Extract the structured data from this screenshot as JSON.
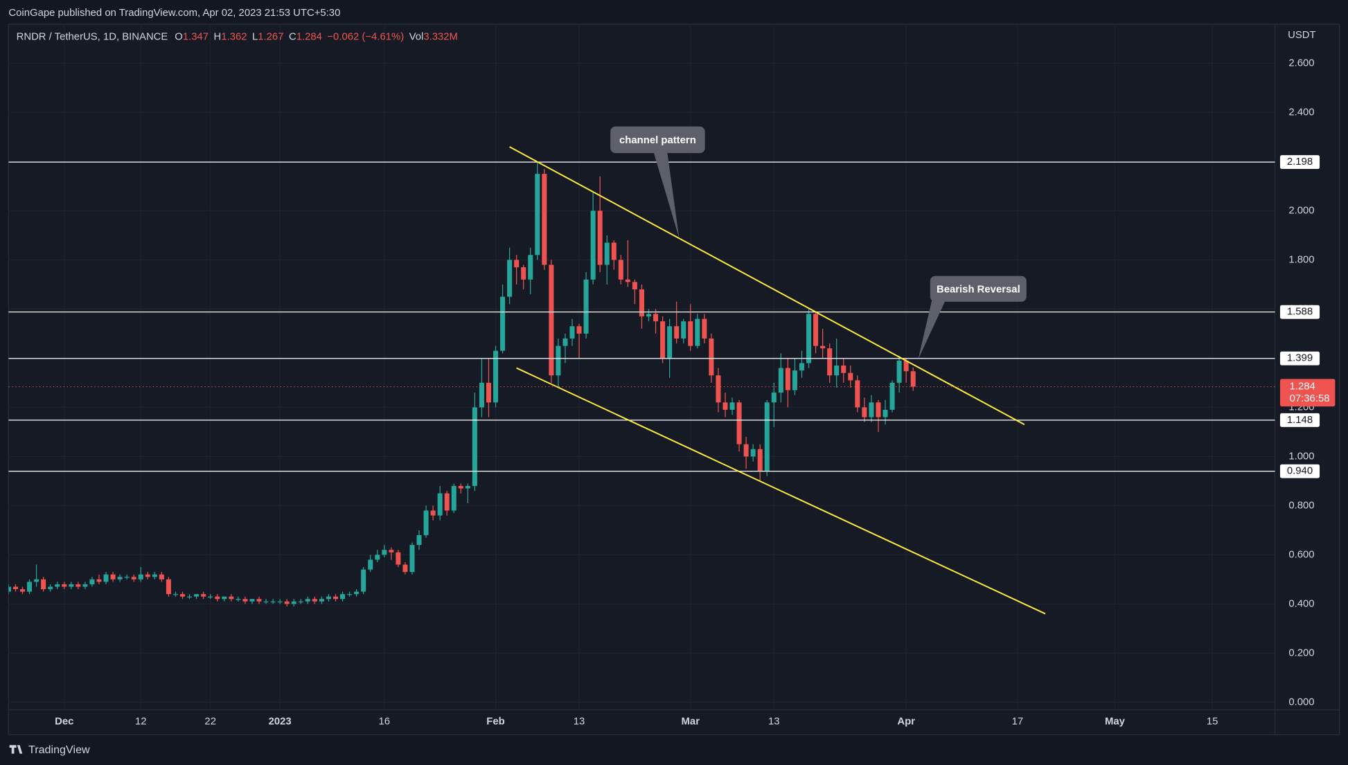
{
  "header": "CoinGape published on TradingView.com, Apr 02, 2023 21:53 UTC+5:30",
  "footer": "TradingView",
  "chart_data": {
    "type": "candlestick",
    "title": "RNDR / TetherUS, 1D, BINANCE",
    "legend": {
      "labels": [
        "O",
        "H",
        "L",
        "C"
      ],
      "change": "−0.062 (−4.61%)",
      "volume_label": "Vol",
      "volume": "3.332M"
    },
    "y_unit": "USDT",
    "up_color": "#26a69a",
    "down_color": "#ef5350",
    "grid": true,
    "x": [
      "2022-11-23",
      "2022-11-24",
      "2022-11-25",
      "2022-11-26",
      "2022-11-27",
      "2022-11-28",
      "2022-11-29",
      "2022-11-30",
      "2022-12-01",
      "2022-12-02",
      "2022-12-03",
      "2022-12-04",
      "2022-12-05",
      "2022-12-06",
      "2022-12-07",
      "2022-12-08",
      "2022-12-09",
      "2022-12-10",
      "2022-12-11",
      "2022-12-12",
      "2022-12-13",
      "2022-12-14",
      "2022-12-15",
      "2022-12-16",
      "2022-12-17",
      "2022-12-18",
      "2022-12-19",
      "2022-12-20",
      "2022-12-21",
      "2022-12-22",
      "2022-12-23",
      "2022-12-24",
      "2022-12-25",
      "2022-12-26",
      "2022-12-27",
      "2022-12-28",
      "2022-12-29",
      "2022-12-30",
      "2022-12-31",
      "2023-01-01",
      "2023-01-02",
      "2023-01-03",
      "2023-01-04",
      "2023-01-05",
      "2023-01-06",
      "2023-01-07",
      "2023-01-08",
      "2023-01-09",
      "2023-01-10",
      "2023-01-11",
      "2023-01-12",
      "2023-01-13",
      "2023-01-14",
      "2023-01-15",
      "2023-01-16",
      "2023-01-17",
      "2023-01-18",
      "2023-01-19",
      "2023-01-20",
      "2023-01-21",
      "2023-01-22",
      "2023-01-23",
      "2023-01-24",
      "2023-01-25",
      "2023-01-26",
      "2023-01-27",
      "2023-01-28",
      "2023-01-29",
      "2023-01-30",
      "2023-01-31",
      "2023-02-01",
      "2023-02-02",
      "2023-02-03",
      "2023-02-04",
      "2023-02-05",
      "2023-02-06",
      "2023-02-07",
      "2023-02-08",
      "2023-02-09",
      "2023-02-10",
      "2023-02-11",
      "2023-02-12",
      "2023-02-13",
      "2023-02-14",
      "2023-02-15",
      "2023-02-16",
      "2023-02-17",
      "2023-02-18",
      "2023-02-19",
      "2023-02-20",
      "2023-02-21",
      "2023-02-22",
      "2023-02-23",
      "2023-02-24",
      "2023-02-25",
      "2023-02-26",
      "2023-02-27",
      "2023-02-28",
      "2023-03-01",
      "2023-03-02",
      "2023-03-03",
      "2023-03-04",
      "2023-03-05",
      "2023-03-06",
      "2023-03-07",
      "2023-03-08",
      "2023-03-09",
      "2023-03-10",
      "2023-03-11",
      "2023-03-12",
      "2023-03-13",
      "2023-03-14",
      "2023-03-15",
      "2023-03-16",
      "2023-03-17",
      "2023-03-18",
      "2023-03-19",
      "2023-03-20",
      "2023-03-21",
      "2023-03-22",
      "2023-03-23",
      "2023-03-24",
      "2023-03-25",
      "2023-03-26",
      "2023-03-27",
      "2023-03-28",
      "2023-03-29",
      "2023-03-30",
      "2023-03-31",
      "2023-04-01",
      "2023-04-02"
    ],
    "open": [
      0.45,
      0.47,
      0.46,
      0.45,
      0.49,
      0.5,
      0.46,
      0.47,
      0.48,
      0.47,
      0.48,
      0.47,
      0.48,
      0.5,
      0.49,
      0.52,
      0.5,
      0.51,
      0.51,
      0.5,
      0.52,
      0.51,
      0.52,
      0.5,
      0.44,
      0.44,
      0.43,
      0.43,
      0.44,
      0.43,
      0.43,
      0.42,
      0.43,
      0.42,
      0.42,
      0.41,
      0.42,
      0.41,
      0.41,
      0.41,
      0.41,
      0.4,
      0.41,
      0.41,
      0.42,
      0.41,
      0.42,
      0.43,
      0.42,
      0.44,
      0.44,
      0.45,
      0.54,
      0.58,
      0.6,
      0.62,
      0.61,
      0.56,
      0.53,
      0.64,
      0.68,
      0.78,
      0.76,
      0.85,
      0.78,
      0.88,
      0.87,
      0.88,
      1.2,
      1.3,
      1.22,
      1.43,
      1.65,
      1.8,
      1.77,
      1.72,
      1.82,
      2.15,
      1.78,
      1.33,
      1.45,
      1.48,
      1.53,
      1.5,
      1.72,
      2.0,
      1.78,
      1.87,
      1.8,
      1.72,
      1.71,
      1.68,
      1.57,
      1.58,
      1.55,
      1.4,
      1.53,
      1.48,
      1.55,
      1.45,
      1.56,
      1.48,
      1.33,
      1.22,
      1.19,
      1.22,
      1.05,
      1.0,
      1.03,
      0.94,
      1.22,
      1.26,
      1.36,
      1.27,
      1.35,
      1.38,
      1.58,
      1.45,
      1.44,
      1.33,
      1.37,
      1.34,
      1.31,
      1.2,
      1.16,
      1.22,
      1.16,
      1.19,
      1.3,
      1.39,
      1.347
    ],
    "high": [
      0.48,
      0.48,
      0.47,
      0.5,
      0.56,
      0.51,
      0.48,
      0.49,
      0.49,
      0.49,
      0.49,
      0.49,
      0.51,
      0.52,
      0.53,
      0.53,
      0.52,
      0.52,
      0.52,
      0.55,
      0.53,
      0.53,
      0.53,
      0.51,
      0.45,
      0.45,
      0.44,
      0.44,
      0.45,
      0.44,
      0.44,
      0.43,
      0.44,
      0.43,
      0.43,
      0.42,
      0.43,
      0.42,
      0.42,
      0.42,
      0.42,
      0.42,
      0.42,
      0.43,
      0.43,
      0.43,
      0.44,
      0.44,
      0.45,
      0.45,
      0.46,
      0.55,
      0.6,
      0.62,
      0.64,
      0.63,
      0.62,
      0.57,
      0.65,
      0.7,
      0.8,
      0.8,
      0.88,
      0.86,
      0.89,
      0.89,
      0.89,
      1.26,
      1.4,
      1.4,
      1.45,
      1.7,
      1.85,
      1.82,
      1.78,
      1.85,
      2.2,
      2.17,
      1.8,
      1.48,
      1.5,
      1.56,
      1.54,
      1.75,
      2.08,
      2.14,
      1.9,
      1.88,
      1.82,
      1.88,
      1.72,
      1.7,
      1.6,
      1.6,
      1.57,
      1.56,
      1.63,
      1.56,
      1.62,
      1.58,
      1.58,
      1.5,
      1.36,
      1.26,
      1.24,
      1.23,
      1.08,
      1.05,
      1.05,
      1.23,
      1.3,
      1.42,
      1.4,
      1.4,
      1.43,
      1.6,
      1.59,
      1.52,
      1.46,
      1.48,
      1.4,
      1.37,
      1.33,
      1.24,
      1.25,
      1.23,
      1.23,
      1.31,
      1.41,
      1.4,
      1.362
    ],
    "low": [
      0.44,
      0.45,
      0.44,
      0.44,
      0.47,
      0.45,
      0.45,
      0.46,
      0.46,
      0.46,
      0.46,
      0.46,
      0.47,
      0.48,
      0.48,
      0.49,
      0.49,
      0.5,
      0.49,
      0.49,
      0.5,
      0.5,
      0.49,
      0.43,
      0.43,
      0.42,
      0.42,
      0.42,
      0.42,
      0.42,
      0.41,
      0.41,
      0.41,
      0.41,
      0.4,
      0.4,
      0.4,
      0.4,
      0.4,
      0.4,
      0.39,
      0.39,
      0.4,
      0.4,
      0.4,
      0.4,
      0.41,
      0.41,
      0.41,
      0.43,
      0.43,
      0.44,
      0.53,
      0.57,
      0.59,
      0.58,
      0.55,
      0.52,
      0.52,
      0.62,
      0.67,
      0.74,
      0.74,
      0.76,
      0.77,
      0.85,
      0.81,
      0.86,
      1.16,
      1.16,
      1.2,
      1.42,
      1.62,
      1.7,
      1.68,
      1.66,
      1.8,
      1.76,
      1.3,
      1.28,
      1.38,
      1.45,
      1.4,
      1.48,
      1.7,
      1.75,
      1.7,
      1.76,
      1.7,
      1.69,
      1.62,
      1.52,
      1.55,
      1.5,
      1.38,
      1.32,
      1.46,
      1.46,
      1.43,
      1.44,
      1.46,
      1.3,
      1.18,
      1.16,
      1.17,
      1.02,
      0.95,
      0.98,
      0.9,
      0.92,
      1.12,
      1.22,
      1.2,
      1.25,
      1.32,
      1.36,
      1.42,
      1.4,
      1.3,
      1.28,
      1.3,
      1.28,
      1.18,
      1.14,
      1.14,
      1.1,
      1.13,
      1.18,
      1.26,
      1.3,
      1.267
    ],
    "close": [
      0.47,
      0.46,
      0.45,
      0.49,
      0.5,
      0.46,
      0.47,
      0.48,
      0.47,
      0.48,
      0.47,
      0.48,
      0.5,
      0.49,
      0.52,
      0.5,
      0.51,
      0.51,
      0.5,
      0.52,
      0.51,
      0.52,
      0.5,
      0.44,
      0.44,
      0.43,
      0.43,
      0.44,
      0.43,
      0.43,
      0.42,
      0.43,
      0.42,
      0.42,
      0.41,
      0.42,
      0.41,
      0.41,
      0.41,
      0.41,
      0.4,
      0.41,
      0.41,
      0.42,
      0.41,
      0.42,
      0.43,
      0.42,
      0.44,
      0.44,
      0.45,
      0.54,
      0.58,
      0.6,
      0.62,
      0.61,
      0.56,
      0.53,
      0.64,
      0.68,
      0.78,
      0.76,
      0.85,
      0.78,
      0.88,
      0.87,
      0.88,
      1.2,
      1.3,
      1.22,
      1.43,
      1.65,
      1.8,
      1.77,
      1.72,
      1.82,
      2.15,
      1.78,
      1.33,
      1.45,
      1.48,
      1.53,
      1.5,
      1.72,
      2.0,
      1.78,
      1.87,
      1.8,
      1.72,
      1.71,
      1.68,
      1.57,
      1.58,
      1.55,
      1.4,
      1.53,
      1.48,
      1.55,
      1.45,
      1.56,
      1.48,
      1.33,
      1.22,
      1.19,
      1.22,
      1.05,
      1.0,
      1.03,
      0.94,
      1.22,
      1.26,
      1.36,
      1.27,
      1.35,
      1.38,
      1.58,
      1.45,
      1.44,
      1.33,
      1.37,
      1.34,
      1.31,
      1.2,
      1.16,
      1.22,
      1.16,
      1.19,
      1.3,
      1.39,
      1.347,
      1.284
    ],
    "countdown": "07:36:58",
    "xlim": [
      "2022-11-23",
      "2023-05-24"
    ],
    "xticks": [
      {
        "value": "2022-12-01",
        "label": "Dec"
      },
      {
        "value": "2022-12-12",
        "label": "12"
      },
      {
        "value": "2022-12-22",
        "label": "22"
      },
      {
        "value": "2023-01-01",
        "label": "2023"
      },
      {
        "value": "2023-01-16",
        "label": "16"
      },
      {
        "value": "2023-02-01",
        "label": "Feb"
      },
      {
        "value": "2023-02-13",
        "label": "13"
      },
      {
        "value": "2023-03-01",
        "label": "Mar"
      },
      {
        "value": "2023-03-13",
        "label": "13"
      },
      {
        "value": "2023-04-01",
        "label": "Apr"
      },
      {
        "value": "2023-04-17",
        "label": "17"
      },
      {
        "value": "2023-05-01",
        "label": "May"
      },
      {
        "value": "2023-05-15",
        "label": "15"
      }
    ],
    "ylim": [
      -0.031,
      2.759
    ],
    "yticks": [
      {
        "value": 0,
        "label": "0.000"
      },
      {
        "value": 0.2,
        "label": "0.200"
      },
      {
        "value": 0.4,
        "label": "0.400"
      },
      {
        "value": 0.6,
        "label": "0.600"
      },
      {
        "value": 0.8,
        "label": "0.800"
      },
      {
        "value": 1,
        "label": "1.000"
      },
      {
        "value": 1.2,
        "label": "1.200"
      },
      {
        "value": 1.4,
        "label": "1.400"
      },
      {
        "value": 1.6,
        "label": "1.600"
      },
      {
        "value": 1.8,
        "label": "1.800"
      },
      {
        "value": 2,
        "label": "2.000"
      },
      {
        "value": 2.2,
        "label": "2.200"
      },
      {
        "value": 2.4,
        "label": "2.400"
      },
      {
        "value": 2.6,
        "label": "2.600"
      }
    ],
    "levels": [
      2.198,
      1.588,
      1.399,
      1.148,
      {
        "value": 0.94,
        "label": "0.940"
      }
    ],
    "level_color": "#ffffff",
    "trendline_color": "#ffeb3b",
    "trendlines": [
      {
        "points": [
          [
            "2023-02-03",
            2.26
          ],
          [
            "2023-04-18",
            1.13
          ]
        ]
      },
      {
        "points": [
          [
            "2023-02-04",
            1.36
          ],
          [
            "2023-04-21",
            0.36
          ]
        ]
      }
    ],
    "annotations": [
      {
        "text": "channel pattern"
      },
      {
        "text": "Bearish Reversal"
      }
    ]
  }
}
